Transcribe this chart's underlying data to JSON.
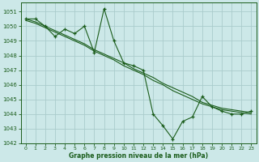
{
  "xlabel": "Graphe pression niveau de la mer (hPa)",
  "background_color": "#cce8e8",
  "grid_color": "#aacccc",
  "line_color": "#1a5c1a",
  "hours": [
    0,
    1,
    2,
    3,
    4,
    5,
    6,
    7,
    8,
    9,
    10,
    11,
    12,
    13,
    14,
    15,
    16,
    17,
    18,
    19,
    20,
    21,
    22,
    23
  ],
  "pressure_main": [
    1050.5,
    1050.5,
    1050.0,
    1049.3,
    1049.8,
    1049.5,
    1050.0,
    1048.2,
    1051.2,
    1049.0,
    1047.5,
    1047.3,
    1047.0,
    1044.0,
    1043.2,
    1042.3,
    1043.5,
    1043.8,
    1045.2,
    1044.5,
    1044.2,
    1044.0,
    1044.0,
    1044.2
  ],
  "pressure_trend1": [
    1050.5,
    1050.3,
    1050.0,
    1049.7,
    1049.4,
    1049.1,
    1048.8,
    1048.4,
    1048.1,
    1047.8,
    1047.5,
    1047.1,
    1046.8,
    1046.5,
    1046.1,
    1045.8,
    1045.5,
    1045.2,
    1044.8,
    1044.6,
    1044.4,
    1044.3,
    1044.2,
    1044.1
  ],
  "pressure_trend2": [
    1050.4,
    1050.2,
    1049.9,
    1049.6,
    1049.3,
    1049.0,
    1048.7,
    1048.3,
    1048.0,
    1047.7,
    1047.3,
    1047.0,
    1046.7,
    1046.3,
    1046.0,
    1045.6,
    1045.3,
    1045.0,
    1044.7,
    1044.5,
    1044.3,
    1044.2,
    1044.1,
    1044.0
  ],
  "ylim_min": 1042,
  "ylim_max": 1051.6,
  "yticks": [
    1042,
    1043,
    1044,
    1045,
    1046,
    1047,
    1048,
    1049,
    1050,
    1051
  ],
  "xticks": [
    0,
    1,
    2,
    3,
    4,
    5,
    6,
    7,
    8,
    9,
    10,
    11,
    12,
    13,
    14,
    15,
    16,
    17,
    18,
    19,
    20,
    21,
    22,
    23
  ]
}
